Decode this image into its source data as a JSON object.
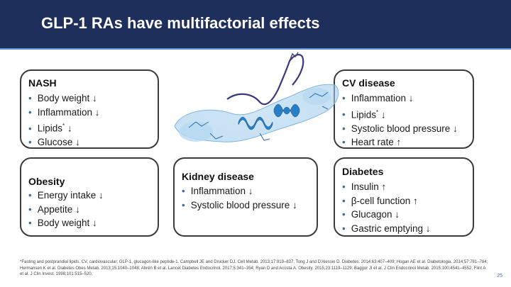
{
  "header": {
    "title": "GLP-1 RAs have multifactorial effects"
  },
  "boxes": {
    "nash": {
      "title": "NASH",
      "items": [
        "Body weight ↓",
        "Inflammation ↓",
        "Lipids",
        "Glucose ↓"
      ]
    },
    "lipids_suffix": "↓",
    "lipids_mark": "*",
    "cv": {
      "title": "CV disease",
      "items": [
        "Inflammation ↓",
        "Lipids",
        "Systolic blood pressure ↓",
        "Heart rate ↑"
      ]
    },
    "obesity": {
      "title": "Obesity",
      "items": [
        "Energy intake ↓",
        "Appetite ↓",
        "Body weight ↓"
      ]
    },
    "kidney": {
      "title": "Kidney disease",
      "items": [
        "Inflammation ↓",
        "Systolic blood pressure ↓"
      ]
    },
    "diabetes": {
      "title": "Diabetes",
      "items": [
        "Insulin ↑",
        "β-cell function ↑",
        "Glucagon ↓",
        "Gastric emptying ↓"
      ]
    }
  },
  "bullet": "•",
  "footnote": "*Fasting and postprandial lipids. CV, cardiovascular; GLP-1, glucagon-like peptide-1. Campbell JE and Drucker DJ. Cell Metab. 2013;17:819–837; Tong J and D'Alessio D. Diabetes. 2014;63:407–409; Hogan AE et al. Diabetologia. 2014;57:781–784; Hermansen K et al. Diabetes Obes Metab. 2013;15:1040–1048; Ahrén B et al. Lancet Diabetes Endocrinol. 2017;5:341–354; Ryan D and Acosta A. Obesity. 2015;23:1119–1129; Baggor JI et al. J Clin Endocrinol Metab. 2015;100:4541–4552; Flint A et al. J Clin Invest. 1998;101:515–520.",
  "page_number": "25",
  "colors": {
    "header": "#1f2f5c",
    "accent": "#3a6ea5",
    "protein": "#3b8fd0"
  }
}
